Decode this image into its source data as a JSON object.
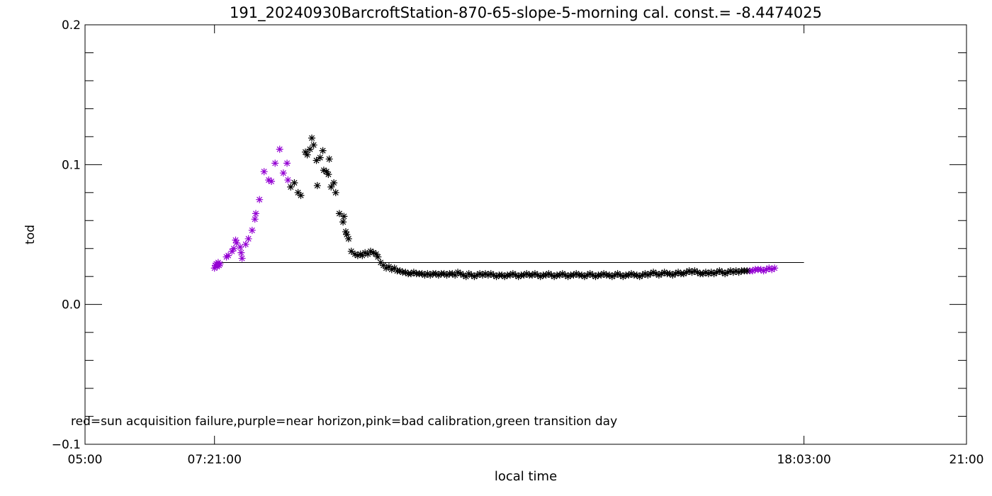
{
  "chart_data": {
    "type": "scatter",
    "title": "191_20240930BarcroftStation-870-65-slope-5-morning cal. const.= -8.4474025",
    "xlabel": "local time",
    "ylabel": "tod",
    "xlim": [
      "05:00",
      "21:00"
    ],
    "ylim": [
      -0.1,
      0.2
    ],
    "x_tick_labels": [
      "05:00",
      "07:21:00",
      "18:03:00",
      "21:00"
    ],
    "y_tick_labels": [
      "-0.1",
      "0.0",
      "0.1",
      "0.2"
    ],
    "annotation": "red=sun acquisition failure,purple=near horizon,pink=bad calibration,green transition day",
    "colors": {
      "purple": "#9400d3",
      "black": "#000000"
    },
    "reference_line": {
      "x": [
        "07:21",
        "18:03"
      ],
      "y": 0.03
    },
    "series": [
      {
        "marker": "asterisk",
        "color": "#9400d3",
        "points": [
          [
            "07:21",
            0.026
          ],
          [
            "07:22",
            0.028
          ],
          [
            "07:23",
            0.029
          ],
          [
            "07:24",
            0.027
          ],
          [
            "07:25",
            0.03
          ],
          [
            "07:26",
            0.028
          ],
          [
            "07:27",
            0.029
          ],
          [
            "07:34",
            0.034
          ],
          [
            "07:36",
            0.035
          ],
          [
            "07:40",
            0.038
          ],
          [
            "07:42",
            0.04
          ],
          [
            "07:44",
            0.046
          ],
          [
            "07:45",
            0.044
          ],
          [
            "07:49",
            0.041
          ],
          [
            "07:50",
            0.037
          ],
          [
            "07:51",
            0.033
          ],
          [
            "07:55",
            0.043
          ],
          [
            "07:58",
            0.047
          ],
          [
            "08:02",
            0.053
          ],
          [
            "08:05",
            0.061
          ],
          [
            "08:06",
            0.065
          ],
          [
            "08:10",
            0.075
          ],
          [
            "08:15",
            0.095
          ],
          [
            "08:20",
            0.089
          ],
          [
            "08:23",
            0.088
          ],
          [
            "08:27",
            0.101
          ],
          [
            "08:32",
            0.111
          ],
          [
            "08:36",
            0.094
          ],
          [
            "08:40",
            0.101
          ],
          [
            "08:41",
            0.089
          ],
          [
            "17:04",
            0.024
          ],
          [
            "17:07",
            0.024
          ],
          [
            "17:10",
            0.025
          ],
          [
            "17:13",
            0.025
          ],
          [
            "17:16",
            0.025
          ],
          [
            "17:19",
            0.024
          ],
          [
            "17:22",
            0.025
          ],
          [
            "17:25",
            0.026
          ],
          [
            "17:28",
            0.025
          ],
          [
            "17:31",
            0.026
          ]
        ]
      },
      {
        "marker": "asterisk",
        "color": "#000000",
        "points": [
          [
            "08:44",
            0.084
          ],
          [
            "08:48",
            0.087
          ],
          [
            "08:52",
            0.08
          ],
          [
            "08:55",
            0.078
          ],
          [
            "09:00",
            0.109
          ],
          [
            "09:02",
            0.107
          ],
          [
            "09:05",
            0.111
          ],
          [
            "09:07",
            0.119
          ],
          [
            "09:09",
            0.114
          ],
          [
            "09:12",
            0.103
          ],
          [
            "09:13",
            0.085
          ],
          [
            "09:16",
            0.105
          ],
          [
            "09:19",
            0.11
          ],
          [
            "09:20",
            0.096
          ],
          [
            "09:23",
            0.095
          ],
          [
            "09:25",
            0.093
          ],
          [
            "09:26",
            0.104
          ],
          [
            "09:28",
            0.084
          ],
          [
            "09:31",
            0.087
          ],
          [
            "09:33",
            0.08
          ],
          [
            "09:37",
            0.065
          ],
          [
            "09:41",
            0.059
          ],
          [
            "09:42",
            0.063
          ],
          [
            "09:44",
            0.052
          ],
          [
            "09:45",
            0.05
          ],
          [
            "09:47",
            0.047
          ],
          [
            "09:50",
            0.038
          ],
          [
            "09:54",
            0.036
          ],
          [
            "09:57",
            0.035
          ],
          [
            "10:00",
            0.036
          ],
          [
            "10:02",
            0.035
          ],
          [
            "10:05",
            0.037
          ],
          [
            "10:08",
            0.036
          ],
          [
            "10:11",
            0.038
          ],
          [
            "10:14",
            0.037
          ],
          [
            "10:17",
            0.036
          ],
          [
            "10:19",
            0.034
          ],
          [
            "10:22",
            0.03
          ],
          [
            "10:25",
            0.028
          ],
          [
            "10:28",
            0.026
          ],
          [
            "10:31",
            0.027
          ],
          [
            "10:34",
            0.025
          ],
          [
            "10:37",
            0.026
          ],
          [
            "10:40",
            0.024
          ],
          [
            "10:43",
            0.024
          ],
          [
            "10:46",
            0.023
          ],
          [
            "10:49",
            0.023
          ],
          [
            "10:52",
            0.022
          ],
          [
            "10:55",
            0.022
          ],
          [
            "10:58",
            0.023
          ],
          [
            "11:01",
            0.022
          ],
          [
            "11:04",
            0.022
          ],
          [
            "11:07",
            0.022
          ],
          [
            "11:10",
            0.021
          ],
          [
            "11:13",
            0.022
          ],
          [
            "11:16",
            0.021
          ],
          [
            "11:19",
            0.022
          ],
          [
            "11:22",
            0.022
          ],
          [
            "11:25",
            0.021
          ],
          [
            "11:28",
            0.022
          ],
          [
            "11:31",
            0.022
          ],
          [
            "11:34",
            0.021
          ],
          [
            "11:37",
            0.022
          ],
          [
            "11:40",
            0.022
          ],
          [
            "11:43",
            0.021
          ],
          [
            "11:46",
            0.023
          ],
          [
            "11:49",
            0.022
          ],
          [
            "11:52",
            0.021
          ],
          [
            "11:55",
            0.02
          ],
          [
            "11:58",
            0.022
          ],
          [
            "12:01",
            0.021
          ],
          [
            "12:04",
            0.02
          ],
          [
            "12:07",
            0.021
          ],
          [
            "12:10",
            0.022
          ],
          [
            "12:13",
            0.021
          ],
          [
            "12:16",
            0.022
          ],
          [
            "12:19",
            0.021
          ],
          [
            "12:22",
            0.022
          ],
          [
            "12:25",
            0.021
          ],
          [
            "12:28",
            0.02
          ],
          [
            "12:31",
            0.021
          ],
          [
            "12:34",
            0.021
          ],
          [
            "12:37",
            0.02
          ],
          [
            "12:40",
            0.021
          ],
          [
            "12:43",
            0.021
          ],
          [
            "12:46",
            0.022
          ],
          [
            "12:49",
            0.021
          ],
          [
            "12:52",
            0.02
          ],
          [
            "12:55",
            0.021
          ],
          [
            "12:58",
            0.021
          ],
          [
            "13:01",
            0.022
          ],
          [
            "13:04",
            0.021
          ],
          [
            "13:07",
            0.021
          ],
          [
            "13:10",
            0.022
          ],
          [
            "13:13",
            0.021
          ],
          [
            "13:16",
            0.02
          ],
          [
            "13:19",
            0.021
          ],
          [
            "13:22",
            0.021
          ],
          [
            "13:25",
            0.022
          ],
          [
            "13:28",
            0.021
          ],
          [
            "13:31",
            0.02
          ],
          [
            "13:34",
            0.021
          ],
          [
            "13:37",
            0.021
          ],
          [
            "13:40",
            0.022
          ],
          [
            "13:43",
            0.021
          ],
          [
            "13:46",
            0.02
          ],
          [
            "13:49",
            0.021
          ],
          [
            "13:52",
            0.021
          ],
          [
            "13:55",
            0.022
          ],
          [
            "13:58",
            0.021
          ],
          [
            "14:01",
            0.021
          ],
          [
            "14:04",
            0.02
          ],
          [
            "14:07",
            0.021
          ],
          [
            "14:10",
            0.022
          ],
          [
            "14:13",
            0.021
          ],
          [
            "14:16",
            0.02
          ],
          [
            "14:19",
            0.021
          ],
          [
            "14:22",
            0.021
          ],
          [
            "14:25",
            0.022
          ],
          [
            "14:28",
            0.021
          ],
          [
            "14:31",
            0.021
          ],
          [
            "14:34",
            0.02
          ],
          [
            "14:37",
            0.021
          ],
          [
            "14:40",
            0.022
          ],
          [
            "14:43",
            0.021
          ],
          [
            "14:46",
            0.02
          ],
          [
            "14:49",
            0.021
          ],
          [
            "14:52",
            0.021
          ],
          [
            "14:55",
            0.022
          ],
          [
            "14:58",
            0.021
          ],
          [
            "15:01",
            0.021
          ],
          [
            "15:04",
            0.02
          ],
          [
            "15:07",
            0.021
          ],
          [
            "15:10",
            0.022
          ],
          [
            "15:13",
            0.021
          ],
          [
            "15:16",
            0.022
          ],
          [
            "15:19",
            0.023
          ],
          [
            "15:22",
            0.022
          ],
          [
            "15:25",
            0.021
          ],
          [
            "15:28",
            0.022
          ],
          [
            "15:31",
            0.023
          ],
          [
            "15:34",
            0.022
          ],
          [
            "15:37",
            0.022
          ],
          [
            "15:40",
            0.021
          ],
          [
            "15:43",
            0.022
          ],
          [
            "15:46",
            0.023
          ],
          [
            "15:49",
            0.022
          ],
          [
            "15:52",
            0.022
          ],
          [
            "15:55",
            0.023
          ],
          [
            "15:58",
            0.024
          ],
          [
            "16:01",
            0.023
          ],
          [
            "16:04",
            0.024
          ],
          [
            "16:07",
            0.023
          ],
          [
            "16:10",
            0.022
          ],
          [
            "16:13",
            0.022
          ],
          [
            "16:16",
            0.023
          ],
          [
            "16:19",
            0.022
          ],
          [
            "16:22",
            0.023
          ],
          [
            "16:25",
            0.022
          ],
          [
            "16:28",
            0.023
          ],
          [
            "16:31",
            0.024
          ],
          [
            "16:34",
            0.023
          ],
          [
            "16:37",
            0.022
          ],
          [
            "16:40",
            0.023
          ],
          [
            "16:43",
            0.024
          ],
          [
            "16:46",
            0.023
          ],
          [
            "16:49",
            0.024
          ],
          [
            "16:52",
            0.023
          ],
          [
            "16:55",
            0.024
          ],
          [
            "16:58",
            0.024
          ],
          [
            "17:01",
            0.024
          ]
        ]
      }
    ]
  }
}
